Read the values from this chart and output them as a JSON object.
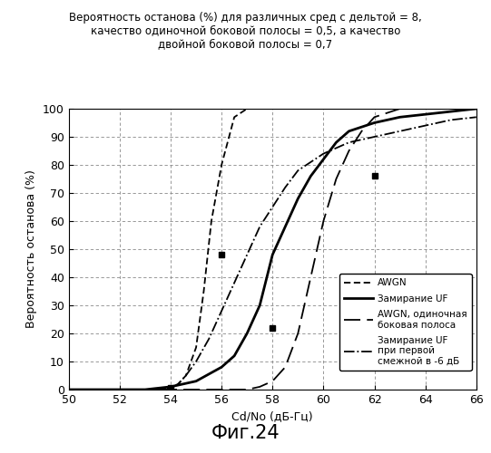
{
  "title": "Вероятность останова (%) для различных сред с дельтой = 8,\nкачество одиночной боковой полосы = 0,5, а качество\nдвойной боковой полосы = 0,7",
  "xlabel": "Cd/No (дБ-Гц)",
  "ylabel": "Вероятность останова (%)",
  "xlim": [
    50,
    66
  ],
  "ylim": [
    0,
    100
  ],
  "xticks": [
    50,
    52,
    54,
    56,
    58,
    60,
    62,
    64,
    66
  ],
  "yticks": [
    0,
    10,
    20,
    30,
    40,
    50,
    60,
    70,
    80,
    90,
    100
  ],
  "caption": "Фиг.24",
  "awgn_x": [
    50,
    51,
    52,
    53,
    53.5,
    54,
    54.3,
    54.6,
    55,
    55.3,
    55.6,
    56,
    56.5,
    57,
    57.5,
    58,
    59,
    60,
    66
  ],
  "awgn_y": [
    0,
    0,
    0,
    0,
    0,
    0.5,
    2,
    5,
    15,
    35,
    60,
    80,
    97,
    100,
    100,
    100,
    100,
    100,
    100
  ],
  "fading_uf_x": [
    50,
    51,
    52,
    53,
    54,
    55,
    56,
    56.5,
    57,
    57.5,
    58,
    58.5,
    59,
    59.5,
    60,
    60.5,
    61,
    62,
    63,
    64,
    65,
    66
  ],
  "fading_uf_y": [
    0,
    0,
    0,
    0,
    1,
    3,
    8,
    12,
    20,
    30,
    48,
    58,
    68,
    76,
    82,
    88,
    92,
    95,
    97,
    98,
    99,
    100
  ],
  "awgn_ssb_x": [
    50,
    51,
    52,
    53,
    54,
    55,
    56,
    57,
    57.5,
    58,
    58.5,
    59,
    59.5,
    60,
    60.5,
    61,
    61.5,
    62,
    63,
    64,
    65,
    66
  ],
  "awgn_ssb_y": [
    0,
    0,
    0,
    0,
    0,
    0,
    0,
    0,
    1,
    3,
    8,
    20,
    40,
    60,
    75,
    85,
    92,
    97,
    100,
    100,
    100,
    100
  ],
  "fading_adj_x": [
    50,
    51,
    52,
    53,
    53.5,
    54,
    54.3,
    54.6,
    55,
    55.5,
    56,
    56.5,
    57,
    57.5,
    58,
    58.5,
    59,
    60,
    61,
    62,
    63,
    64,
    65,
    66
  ],
  "fading_adj_y": [
    0,
    0,
    0,
    0,
    0,
    0.5,
    2,
    5,
    10,
    18,
    28,
    38,
    48,
    58,
    65,
    72,
    78,
    84,
    88,
    90,
    92,
    94,
    96,
    97
  ],
  "marker1_x": 54,
  "marker1_y": 0.5,
  "marker2_x": 56.0,
  "marker2_y": 48,
  "marker3_x": 58,
  "marker3_y": 22,
  "marker4_x": 62,
  "marker4_y": 76,
  "bg_color": "#ffffff",
  "grid_color": "#888888"
}
